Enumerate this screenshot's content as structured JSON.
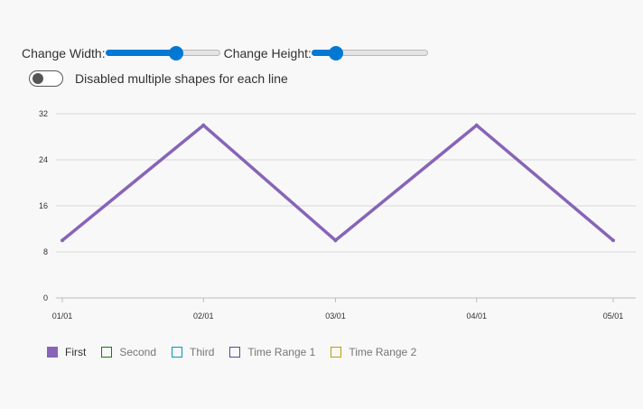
{
  "controls": {
    "width_label": "Change Width:",
    "width_value": 0.63,
    "height_label": "Change Height:",
    "height_value": 0.17,
    "toggle_label": "Disabled multiple shapes for each line",
    "toggle_on": false
  },
  "colors": {
    "accent": "#0078d4",
    "first": "#8764b8",
    "second": "#107c10",
    "third": "#0099bc",
    "time_range_1": "#4f4f8f",
    "time_range_2": "#c19c00"
  },
  "chart_data": {
    "type": "line",
    "title": "",
    "xlabel": "",
    "ylabel": "",
    "x_ticks": [
      "01/01",
      "02/01",
      "03/01",
      "04/01",
      "05/01"
    ],
    "y_ticks": [
      "0",
      "8",
      "16",
      "24",
      "32"
    ],
    "ylim": [
      0,
      32
    ],
    "xlim": [
      "2020-01-01",
      "2020-05-01"
    ],
    "grid": true,
    "legend_position": "bottom-left",
    "series": [
      {
        "name": "First",
        "color": "#8764b8",
        "x": [
          "2020-01-01",
          "2020-02-01",
          "2020-03-01",
          "2020-04-01",
          "2020-05-01"
        ],
        "values": [
          10,
          30,
          10,
          30,
          10
        ]
      }
    ],
    "legend": [
      {
        "label": "First",
        "color": "#8764b8",
        "filled": true
      },
      {
        "label": "Second",
        "color": "#107c10",
        "filled": false
      },
      {
        "label": "Third",
        "color": "#0099bc",
        "filled": false
      },
      {
        "label": "Time Range 1",
        "color": "#4f4f8f",
        "filled": false
      },
      {
        "label": "Time Range 2",
        "color": "#c19c00",
        "filled": false
      }
    ]
  }
}
